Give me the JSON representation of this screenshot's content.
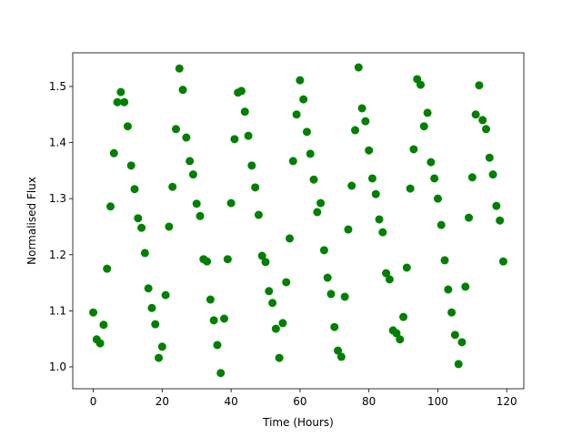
{
  "chart_data": {
    "type": "scatter",
    "xlabel": "Time (Hours)",
    "ylabel": "Normalised Flux",
    "color": "#008000",
    "x": [
      0,
      1,
      2,
      3,
      4,
      5,
      6,
      7,
      8,
      9,
      10,
      11,
      12,
      13,
      14,
      15,
      16,
      17,
      18,
      19,
      20,
      21,
      22,
      23,
      24,
      25,
      26,
      27,
      28,
      29,
      30,
      31,
      32,
      33,
      34,
      35,
      36,
      37,
      38,
      39,
      40,
      41,
      42,
      43,
      44,
      45,
      46,
      47,
      48,
      49,
      50,
      51,
      52,
      53,
      54,
      55,
      56,
      57,
      58,
      59,
      60,
      61,
      62,
      63,
      64,
      65,
      66,
      67,
      68,
      69,
      70,
      71,
      72,
      73,
      74,
      75,
      76,
      77,
      78,
      79,
      80,
      81,
      82,
      83,
      84,
      85,
      86,
      87,
      88,
      89,
      90,
      91,
      92,
      93,
      94,
      95,
      96,
      97,
      98,
      99,
      100,
      101,
      102,
      103,
      104,
      105,
      106,
      107,
      108,
      109,
      110,
      111,
      112,
      113,
      114,
      115,
      116,
      117,
      118,
      119
    ],
    "values": [
      1.097,
      1.049,
      1.042,
      1.075,
      1.175,
      1.286,
      1.381,
      1.472,
      1.49,
      1.472,
      1.429,
      1.359,
      1.317,
      1.265,
      1.248,
      1.203,
      1.14,
      1.105,
      1.076,
      1.016,
      1.036,
      1.128,
      1.25,
      1.321,
      1.424,
      1.532,
      1.494,
      1.409,
      1.367,
      1.343,
      1.291,
      1.269,
      1.192,
      1.188,
      1.12,
      1.083,
      1.039,
      0.989,
      1.086,
      1.192,
      1.292,
      1.406,
      1.489,
      1.492,
      1.455,
      1.412,
      1.359,
      1.32,
      1.271,
      1.198,
      1.187,
      1.135,
      1.114,
      1.068,
      1.016,
      1.078,
      1.151,
      1.229,
      1.367,
      1.45,
      1.511,
      1.477,
      1.419,
      1.38,
      1.334,
      1.276,
      1.292,
      1.208,
      1.159,
      1.13,
      1.071,
      1.029,
      1.018,
      1.125,
      1.245,
      1.323,
      1.422,
      1.534,
      1.461,
      1.438,
      1.386,
      1.336,
      1.308,
      1.263,
      1.24,
      1.167,
      1.156,
      1.065,
      1.06,
      1.049,
      1.089,
      1.177,
      1.318,
      1.388,
      1.513,
      1.503,
      1.429,
      1.453,
      1.365,
      1.336,
      1.3,
      1.253,
      1.19,
      1.138,
      1.097,
      1.057,
      1.005,
      1.044,
      1.143,
      1.266,
      1.338,
      1.45,
      1.502,
      1.44,
      1.424,
      1.373,
      1.343,
      1.287,
      1.261,
      1.188
    ],
    "xlim": [
      -5.95,
      124.95
    ],
    "xticks": [
      0,
      20,
      40,
      60,
      80,
      100,
      120
    ],
    "ylim": [
      0.961,
      1.56
    ],
    "yticks": [
      {
        "value": 1,
        "label": "1.0"
      },
      1.1,
      1.2,
      1.3,
      1.4,
      1.5
    ]
  }
}
